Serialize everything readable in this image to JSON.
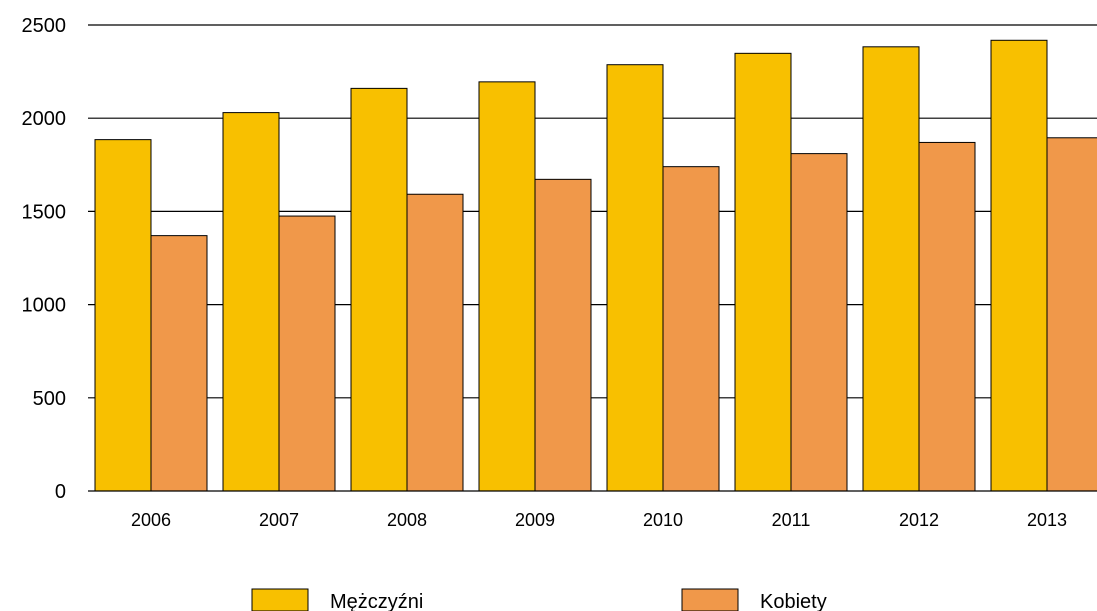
{
  "chart_data": {
    "type": "bar",
    "categories": [
      "2006",
      "2007",
      "2008",
      "2009",
      "2010",
      "2011",
      "2012",
      "2013"
    ],
    "series": [
      {
        "name": "Mężczyźni",
        "color": "#F8C000",
        "values": [
          1885,
          2030,
          2160,
          2195,
          2287,
          2348,
          2383,
          2418
        ]
      },
      {
        "name": "Kobiety",
        "color": "#F0984A",
        "values": [
          1370,
          1475,
          1592,
          1672,
          1740,
          1810,
          1870,
          1895
        ]
      }
    ],
    "ylim": [
      0,
      2500
    ],
    "yticks": [
      0,
      500,
      1000,
      1500,
      2000,
      2500
    ],
    "grid": true,
    "legend_position": "bottom"
  }
}
